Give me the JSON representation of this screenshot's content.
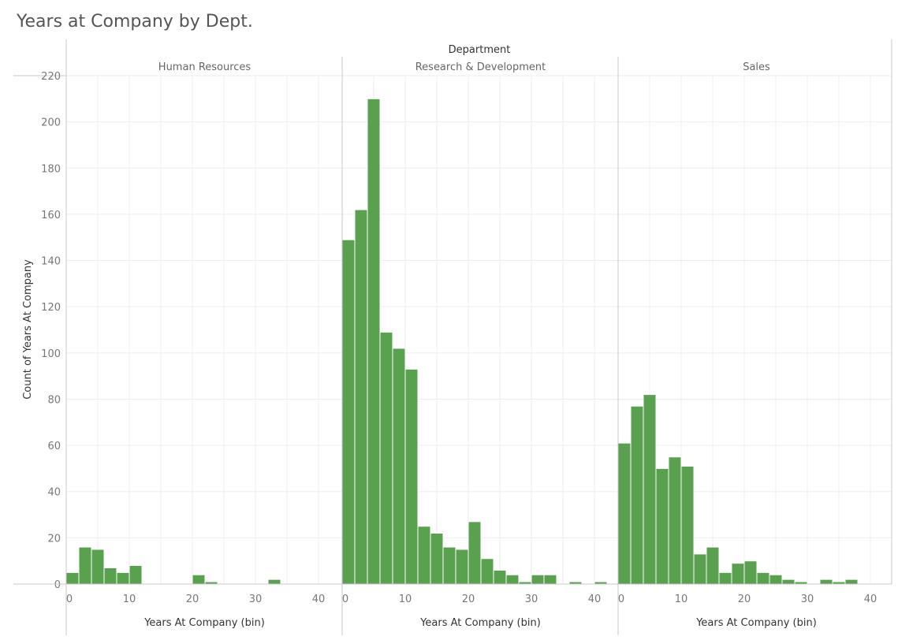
{
  "chart_data": {
    "type": "bar",
    "title": "Years at Company by Dept.",
    "column_header": "Department",
    "ylabel": "Count of Years At Company",
    "xlabel": "Years At Company (bin)",
    "ylim": [
      0,
      220
    ],
    "y_ticks": [
      0,
      20,
      40,
      60,
      80,
      100,
      120,
      140,
      160,
      180,
      200,
      220
    ],
    "x_ticks": [
      0,
      10,
      20,
      30,
      40
    ],
    "xlim": [
      0,
      43
    ],
    "bin_width": 2,
    "bar_color": "#59a14f",
    "grid": true,
    "panels": [
      {
        "name": "Human Resources",
        "bins": [
          {
            "x": 0,
            "value": 5
          },
          {
            "x": 2,
            "value": 16
          },
          {
            "x": 4,
            "value": 15
          },
          {
            "x": 6,
            "value": 7
          },
          {
            "x": 8,
            "value": 5
          },
          {
            "x": 10,
            "value": 8
          },
          {
            "x": 20,
            "value": 4
          },
          {
            "x": 22,
            "value": 1
          },
          {
            "x": 32,
            "value": 2
          }
        ]
      },
      {
        "name": "Research & Development",
        "bins": [
          {
            "x": 0,
            "value": 149
          },
          {
            "x": 2,
            "value": 162
          },
          {
            "x": 4,
            "value": 210
          },
          {
            "x": 6,
            "value": 109
          },
          {
            "x": 8,
            "value": 102
          },
          {
            "x": 10,
            "value": 93
          },
          {
            "x": 12,
            "value": 25
          },
          {
            "x": 14,
            "value": 22
          },
          {
            "x": 16,
            "value": 16
          },
          {
            "x": 18,
            "value": 15
          },
          {
            "x": 20,
            "value": 27
          },
          {
            "x": 22,
            "value": 11
          },
          {
            "x": 24,
            "value": 6
          },
          {
            "x": 26,
            "value": 4
          },
          {
            "x": 28,
            "value": 1
          },
          {
            "x": 30,
            "value": 4
          },
          {
            "x": 32,
            "value": 4
          },
          {
            "x": 36,
            "value": 1
          },
          {
            "x": 40,
            "value": 1
          }
        ]
      },
      {
        "name": "Sales",
        "bins": [
          {
            "x": 0,
            "value": 61
          },
          {
            "x": 2,
            "value": 77
          },
          {
            "x": 4,
            "value": 82
          },
          {
            "x": 6,
            "value": 50
          },
          {
            "x": 8,
            "value": 55
          },
          {
            "x": 10,
            "value": 51
          },
          {
            "x": 12,
            "value": 13
          },
          {
            "x": 14,
            "value": 16
          },
          {
            "x": 16,
            "value": 5
          },
          {
            "x": 18,
            "value": 9
          },
          {
            "x": 20,
            "value": 10
          },
          {
            "x": 22,
            "value": 5
          },
          {
            "x": 24,
            "value": 4
          },
          {
            "x": 26,
            "value": 2
          },
          {
            "x": 28,
            "value": 1
          },
          {
            "x": 32,
            "value": 2
          },
          {
            "x": 34,
            "value": 1
          },
          {
            "x": 36,
            "value": 2
          }
        ]
      }
    ]
  }
}
